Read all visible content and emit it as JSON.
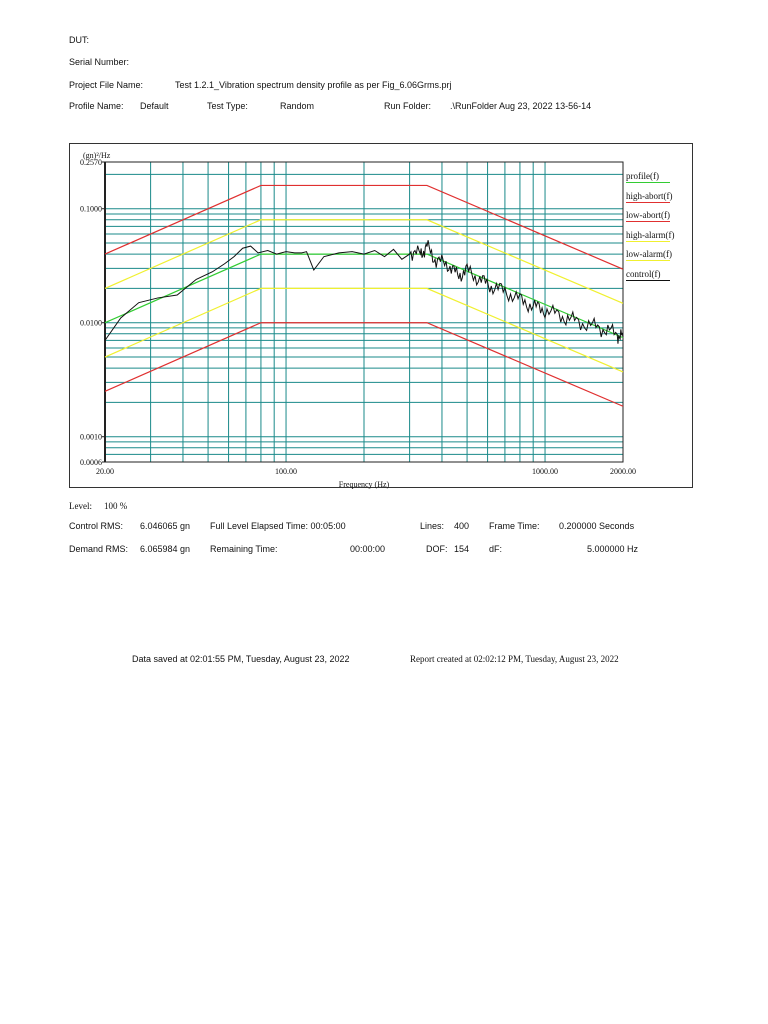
{
  "header": {
    "dut_label": "DUT:",
    "serial_label": "Serial Number:",
    "project_label": "Project File Name:",
    "project_value": "Test 1.2.1_Vibration spectrum density profile as per Fig_6.06Grms.prj",
    "profile_label": "Profile Name:",
    "profile_value": "Default",
    "testtype_label": "Test Type:",
    "testtype_value": "Random",
    "runfolder_label": "Run Folder:",
    "runfolder_value": ".\\RunFolder Aug 23, 2022 13-56-14"
  },
  "stats": {
    "level_label": "Level:",
    "level_value": "100 %",
    "control_rms_label": "Control RMS:",
    "control_rms_value": "6.046065 gn",
    "elapsed_label": "Full Level Elapsed Time: 00:05:00",
    "lines_label": "Lines:",
    "lines_value": "400",
    "frame_time_label": "Frame Time:",
    "frame_time_value": "0.200000 Seconds",
    "demand_rms_label": "Demand RMS:",
    "demand_rms_value": "6.065984 gn",
    "remaining_label": "Remaining Time:",
    "remaining_value": "00:00:00",
    "dof_label": "DOF:",
    "dof_value": "154",
    "df_label": "dF:",
    "df_value": "5.000000 Hz"
  },
  "footer": {
    "data_saved": "Data saved at 02:01:55 PM, Tuesday, August 23, 2022",
    "report_created": "Report created at 02:02:12 PM, Tuesday, August 23, 2022"
  },
  "chart_data": {
    "type": "line",
    "title": "",
    "xlabel": "Frequency (Hz)",
    "ylabel": "(gn)²/Hz",
    "xscale": "log",
    "yscale": "log",
    "xlim": [
      20,
      2000
    ],
    "ylim": [
      0.0006,
      0.257
    ],
    "x_tick_labels": [
      "20.00",
      "100.00",
      "1000.00",
      "2000.00"
    ],
    "x_ticks": [
      20,
      100,
      1000,
      2000
    ],
    "y_tick_labels": [
      "0.2570",
      "0.1000",
      "0.0100",
      "0.0010",
      "0.0006"
    ],
    "y_ticks": [
      0.257,
      0.1,
      0.01,
      0.001,
      0.0006
    ],
    "grid": true,
    "grid_color": "#1a8a8a",
    "legend_position": "right",
    "series": [
      {
        "name": "profile(f)",
        "color": "#33cc33",
        "x": [
          20,
          80,
          350,
          2000
        ],
        "y": [
          0.01,
          0.04,
          0.04,
          0.0074
        ]
      },
      {
        "name": "high-abort(f)",
        "color": "#e03030",
        "x": [
          20,
          80,
          350,
          2000
        ],
        "y": [
          0.04,
          0.16,
          0.16,
          0.0295
        ]
      },
      {
        "name": "low-abort(f)",
        "color": "#e03030",
        "x": [
          20,
          80,
          350,
          2000
        ],
        "y": [
          0.0025,
          0.01,
          0.01,
          0.00185
        ]
      },
      {
        "name": "high-alarm(f)",
        "color": "#f0f030",
        "x": [
          20,
          80,
          350,
          2000
        ],
        "y": [
          0.02,
          0.08,
          0.08,
          0.0148
        ]
      },
      {
        "name": "low-alarm(f)",
        "color": "#f0f030",
        "x": [
          20,
          80,
          350,
          2000
        ],
        "y": [
          0.005,
          0.02,
          0.02,
          0.0037
        ]
      },
      {
        "name": "control(f)",
        "color": "#111111",
        "x": [
          20,
          23,
          27,
          32,
          38,
          45,
          52,
          58,
          63,
          68,
          73,
          78,
          85,
          92,
          100,
          108,
          115,
          120,
          128,
          140,
          160,
          180,
          200,
          220,
          240,
          260,
          280,
          300,
          330,
          350,
          380,
          420,
          460,
          500,
          560,
          620,
          700,
          800,
          900,
          1000,
          1150,
          1300,
          1500,
          1700,
          1900,
          2000
        ],
        "y": [
          0.007,
          0.011,
          0.015,
          0.0165,
          0.0175,
          0.024,
          0.028,
          0.033,
          0.038,
          0.045,
          0.047,
          0.041,
          0.043,
          0.04,
          0.042,
          0.041,
          0.041,
          0.042,
          0.029,
          0.038,
          0.041,
          0.042,
          0.04,
          0.043,
          0.038,
          0.044,
          0.036,
          0.043,
          0.04,
          0.047,
          0.035,
          0.033,
          0.026,
          0.029,
          0.024,
          0.021,
          0.019,
          0.016,
          0.014,
          0.013,
          0.0115,
          0.0105,
          0.0095,
          0.0088,
          0.008,
          0.0075
        ]
      }
    ]
  }
}
